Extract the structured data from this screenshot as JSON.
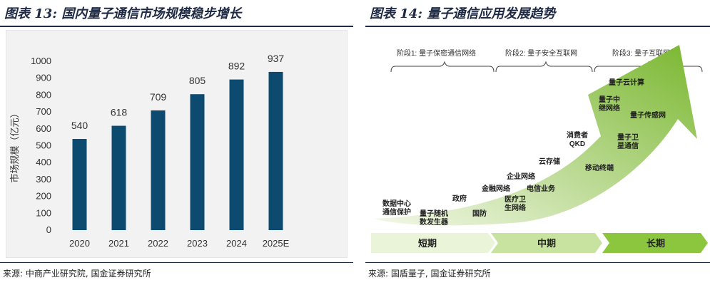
{
  "left_panel": {
    "title": "图表 13: 国内量子通信市场规模稳步增长",
    "source": "来源: 中商产业研究院, 国金证券研究所"
  },
  "right_panel": {
    "title": "图表 14: 量子通信应用发展趋势",
    "source": "来源: 国盾量子, 国金证券研究所"
  },
  "chart_data": {
    "type": "bar",
    "categories": [
      "2020",
      "2021",
      "2022",
      "2023",
      "2024",
      "2025E"
    ],
    "values": [
      540,
      618,
      709,
      805,
      892,
      937
    ],
    "ylabel": "市场规模（亿元）",
    "ylim": [
      0,
      1000
    ],
    "yticks": [
      0,
      100,
      200,
      300,
      400,
      500,
      600,
      700,
      800,
      900,
      1000
    ],
    "bar_color": "#0d4a70",
    "grid": false,
    "data_labels": true
  },
  "diagram": {
    "stages": [
      {
        "label": "阶段1: 量子保密通信网络"
      },
      {
        "label": "阶段2: 量子安全互联网"
      },
      {
        "label": "阶段3: 量子互联网"
      }
    ],
    "apps": [
      {
        "text": [
          "数据中心",
          "通信保护"
        ]
      },
      {
        "text": [
          "量子随机",
          "数发生器"
        ]
      },
      {
        "text": [
          "政府"
        ]
      },
      {
        "text": [
          "国防"
        ]
      },
      {
        "text": [
          "金融网络"
        ]
      },
      {
        "text": [
          "医疗卫",
          "生网络"
        ]
      },
      {
        "text": [
          "企业网络"
        ]
      },
      {
        "text": [
          "电信业务"
        ]
      },
      {
        "text": [
          "云存储"
        ]
      },
      {
        "text": [
          "消费者",
          "QKD"
        ]
      },
      {
        "text": [
          "移动终端"
        ]
      },
      {
        "text": [
          "量子卫",
          "星通信"
        ]
      },
      {
        "text": [
          "量子中",
          "继网络"
        ]
      },
      {
        "text": [
          "量子云计算"
        ]
      },
      {
        "text": [
          "量子传感网"
        ]
      }
    ],
    "phases": [
      {
        "label": "短期"
      },
      {
        "label": "中期"
      },
      {
        "label": "长期"
      }
    ],
    "colors": {
      "arrow_dark": "#7ab730",
      "arrow_light": "#f3f8e8",
      "phase_long": "#8cc63f",
      "phase_mid": "#c8e2a0",
      "phase_short": "#e9f4d8"
    }
  }
}
